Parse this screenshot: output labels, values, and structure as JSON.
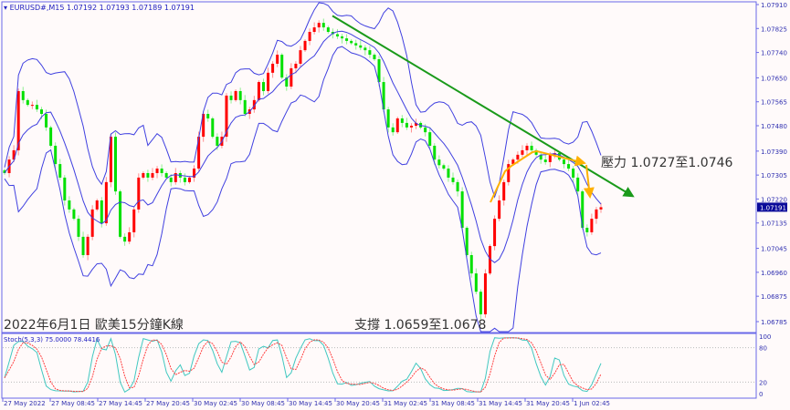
{
  "header": {
    "symbol": "EURUSD#,M15",
    "ohlc": "1.07192 1.07193 1.07189 1.07191"
  },
  "annotations": {
    "title": "2022年6月1日 歐美15分鐘K線",
    "support": "支撐 1.0659至1.0678",
    "resistance": "壓力 1.0727至1.0746"
  },
  "colors": {
    "bull": "#ff0000",
    "bear": "#00e000",
    "bands": "#4040e0",
    "trendline": "#1a9a1a",
    "pattern": "#ffb000",
    "stoch_main": "#40c8c0",
    "stoch_signal": "#ff4040",
    "axis": "#6868e8"
  },
  "stochastic": {
    "label": "Stoch(5,3,3) 75.0000 78.4416",
    "levels": [
      "100",
      "80",
      "20",
      "0"
    ]
  },
  "current_price": "1.07191",
  "chart_data": {
    "type": "candlestick",
    "timeframe": "M15",
    "indicators": [
      "Bollinger Bands",
      "Stochastic(5,3,3)"
    ],
    "ylim": [
      1.06785,
      1.0791
    ],
    "y_ticks": [
      "1.07910",
      "1.07825",
      "1.07740",
      "1.07650",
      "1.07565",
      "1.07480",
      "1.07390",
      "1.07305",
      "1.07220",
      "1.07135",
      "1.07045",
      "1.06960",
      "1.06875",
      "1.06785"
    ],
    "x_ticks": [
      "27 May 2022",
      "27 May 08:45",
      "27 May 14:45",
      "27 May 20:45",
      "30 May 02:45",
      "30 May 08:45",
      "30 May 14:45",
      "30 May 20:45",
      "31 May 02:45",
      "31 May 08:45",
      "31 May 14:45",
      "31 May 20:45",
      "1 Jun 02:45"
    ],
    "close": [
      1.07312,
      1.0736,
      1.07393,
      1.07603,
      1.07571,
      1.07554,
      1.07554,
      1.07538,
      1.07522,
      1.07474,
      1.07409,
      1.07344,
      1.07296,
      1.07215,
      1.07183,
      1.0715,
      1.07086,
      1.07021,
      1.07086,
      1.07183,
      1.07215,
      1.07134,
      1.0728,
      1.07441,
      1.07247,
      1.07086,
      1.07069,
      1.07102,
      1.07183,
      1.07296,
      1.07312,
      1.07296,
      1.07312,
      1.07328,
      1.07312,
      1.07296,
      1.0728,
      1.07312,
      1.07296,
      1.0728,
      1.07296,
      1.07328,
      1.07441,
      1.07522,
      1.07506,
      1.07441,
      1.07409,
      1.07441,
      1.07587,
      1.07571,
      1.07603,
      1.07571,
      1.07522,
      1.07538,
      1.07571,
      1.07635,
      1.07603,
      1.07668,
      1.077,
      1.07732,
      1.07651,
      1.07619,
      1.07684,
      1.077,
      1.07748,
      1.07781,
      1.07813,
      1.07829,
      1.07845,
      1.07829,
      1.07813,
      1.07805,
      1.07797,
      1.0779,
      1.07781,
      1.07773,
      1.07765,
      1.07757,
      1.07748,
      1.07732,
      1.07716,
      1.07635,
      1.07538,
      1.07474,
      1.07457,
      1.07506,
      1.0749,
      1.07474,
      1.0748,
      1.0749,
      1.07474,
      1.07457,
      1.07409,
      1.0736,
      1.0734,
      1.07328,
      1.07296,
      1.0728,
      1.07247,
      1.07118,
      1.07021,
      1.06956,
      1.06891,
      1.06811,
      1.06956,
      1.07053,
      1.0715,
      1.07215,
      1.0728,
      1.07344,
      1.0736,
      1.07377,
      1.07393,
      1.07409,
      1.07393,
      1.07377,
      1.0736,
      1.07351,
      1.07377,
      1.07383,
      1.0736,
      1.07344,
      1.07328,
      1.07296,
      1.07247,
      1.07118,
      1.07102,
      1.0715,
      1.07183,
      1.07191
    ],
    "trendlines": [
      {
        "kind": "resistance-down",
        "from_price": 1.0787,
        "to_price": 1.0723,
        "color": "#1a9a1a"
      }
    ]
  }
}
